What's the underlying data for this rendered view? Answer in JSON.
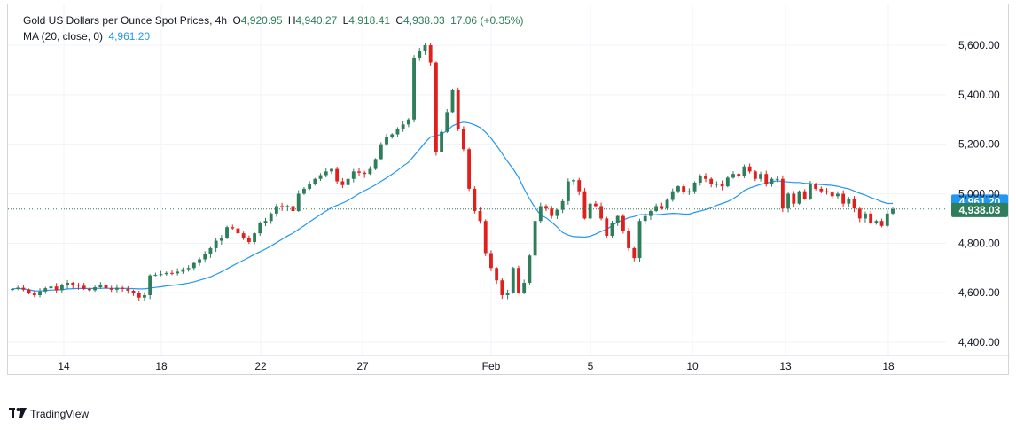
{
  "legend": {
    "title": "Gold US Dollars per Ounce Spot Prices, 4h",
    "open_label": "O",
    "open": "4,920.95",
    "high_label": "H",
    "high": "4,940.27",
    "low_label": "L",
    "low": "4,918.41",
    "close_label": "C",
    "close": "4,938.03",
    "change": "17.06 (+0.35%)",
    "ma_label": "MA (20, close, 0)",
    "ma_value": "4,961.20"
  },
  "price_tags": {
    "ma": "4,961.20",
    "last": "4,938.03"
  },
  "branding": {
    "logo_text": "TradingView"
  },
  "colors": {
    "up": "#26a69a",
    "down": "#ef5350",
    "body_up": "#2e7d5b",
    "body_down": "#e0201c",
    "ma": "#2196f3",
    "grid": "#f0f3fa",
    "text": "#131722"
  },
  "chart_data": {
    "type": "candlestick",
    "title": "Gold US Dollars per Ounce Spot Prices, 4h",
    "y_ticks": [
      "5,600.00",
      "5,400.00",
      "5,200.00",
      "5,000.00",
      "4,800.00",
      "4,600.00",
      "4,400.00"
    ],
    "y_tick_values": [
      5600,
      5400,
      5200,
      5000,
      4800,
      4600,
      4400
    ],
    "x_ticks": [
      "14",
      "18",
      "22",
      "27",
      "Feb",
      "5",
      "10",
      "13",
      "18"
    ],
    "ylim": [
      4325,
      5625
    ],
    "last_price": 4938.03,
    "ma_last": 4961.2,
    "candle_closes": [
      4615,
      4620,
      4612,
      4600,
      4590,
      4605,
      4618,
      4625,
      4610,
      4630,
      4640,
      4632,
      4628,
      4615,
      4610,
      4622,
      4630,
      4618,
      4612,
      4620,
      4615,
      4608,
      4600,
      4580,
      4590,
      4670,
      4672,
      4675,
      4680,
      4678,
      4685,
      4695,
      4700,
      4720,
      4735,
      4755,
      4780,
      4810,
      4820,
      4865,
      4860,
      4840,
      4820,
      4805,
      4840,
      4880,
      4890,
      4920,
      4950,
      4945,
      4950,
      4930,
      5000,
      5020,
      5040,
      5060,
      5075,
      5090,
      5100,
      5050,
      5035,
      5060,
      5090,
      5085,
      5080,
      5100,
      5140,
      5200,
      5230,
      5240,
      5260,
      5280,
      5300,
      5550,
      5575,
      5600,
      5530,
      5170,
      5250,
      5330,
      5420,
      5260,
      5180,
      5020,
      4930,
      4890,
      4760,
      4700,
      4650,
      4590,
      4600,
      4700,
      4600,
      4640,
      4750,
      4890,
      4950,
      4940,
      4910,
      4935,
      4970,
      5050,
      5055,
      5010,
      4900,
      4960,
      4950,
      4900,
      4830,
      4880,
      4910,
      4850,
      4780,
      4740,
      4890,
      4910,
      4930,
      4950,
      4940,
      4975,
      5010,
      5030,
      5005,
      5010,
      5045,
      5070,
      5060,
      5040,
      5040,
      5030,
      5065,
      5080,
      5070,
      5110,
      5090,
      5060,
      5080,
      5040,
      5060,
      5060,
      4940,
      5000,
      4960,
      5010,
      4980,
      5040,
      5020,
      5010,
      5005,
      4990,
      5000,
      4960,
      4980,
      4940,
      4900,
      4920,
      4880,
      4890,
      4870,
      4920,
      4938.03
    ]
  }
}
